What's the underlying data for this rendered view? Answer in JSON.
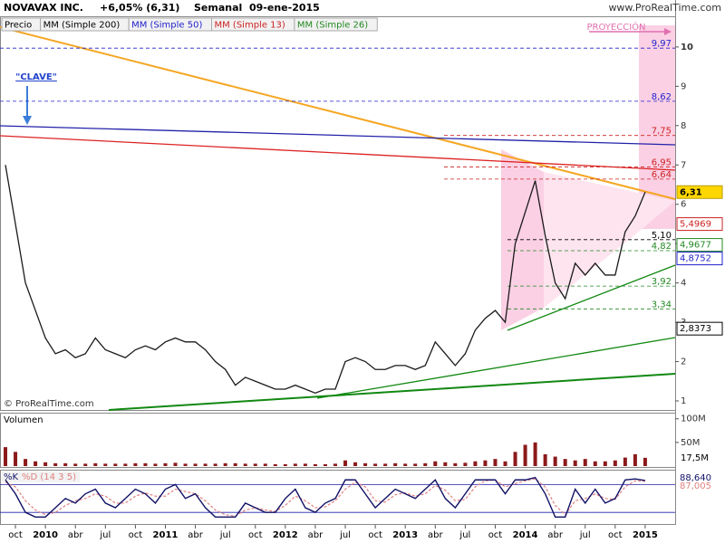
{
  "header": {
    "title": "NOVAVAX INC.",
    "change": "+6,05% (6,31)",
    "period": "Semanal",
    "date": "09-ene-2015",
    "site": "www.ProRealTime.com"
  },
  "indicators": [
    {
      "name": "Precio",
      "color": "#000000"
    },
    {
      "name": "MM (Simple 200)",
      "color": "#000000"
    },
    {
      "name": "MM (Simple 50)",
      "color": "#2222cc"
    },
    {
      "name": "MM (Simple 13)",
      "color": "#cc2222"
    },
    {
      "name": "MM (Simple 26)",
      "color": "#228822"
    }
  ],
  "chart_data": [
    {
      "type": "line",
      "title": "Precio",
      "categories": [
        null,
        "oct",
        null,
        null,
        "2010",
        null,
        null,
        "abr",
        null,
        null,
        "jul",
        null,
        null,
        "oct",
        null,
        null,
        "2011",
        null,
        null,
        "abr",
        null,
        null,
        "jul",
        null,
        null,
        "oct",
        null,
        null,
        "2012",
        null,
        null,
        "abr",
        null,
        null,
        "jul",
        null,
        null,
        "oct",
        null,
        null,
        "2013",
        null,
        null,
        "abr",
        null,
        null,
        "jul",
        null,
        null,
        "oct",
        null,
        null,
        "2014",
        null,
        null,
        "abr",
        null,
        null,
        "jul",
        null,
        null,
        "oct",
        null,
        null,
        "2015"
      ],
      "series": [
        {
          "name": "Precio",
          "color": "#1a1a1a",
          "values": [
            7,
            5.5,
            4.0,
            3.3,
            2.6,
            2.2,
            2.3,
            2.1,
            2.2,
            2.6,
            2.3,
            2.2,
            2.1,
            2.3,
            2.4,
            2.3,
            2.5,
            2.6,
            2.5,
            2.5,
            2.3,
            2.0,
            1.8,
            1.4,
            1.6,
            1.5,
            1.4,
            1.3,
            1.3,
            1.4,
            1.3,
            1.2,
            1.3,
            1.3,
            2.0,
            2.1,
            2.0,
            1.8,
            1.8,
            1.9,
            1.9,
            1.8,
            1.9,
            2.5,
            2.2,
            1.9,
            2.2,
            2.8,
            3.1,
            3.3,
            3.0,
            5.0,
            5.8,
            6.6,
            5.2,
            4.0,
            3.6,
            4.5,
            4.2,
            4.5,
            4.2,
            4.2,
            5.3,
            5.7,
            6.31
          ]
        }
      ],
      "ylim": [
        0.77,
        10.78
      ],
      "yticks": [
        1,
        2,
        3,
        4,
        5,
        6,
        7,
        8,
        9,
        10
      ],
      "levels": [
        {
          "value": 9.97,
          "label": "9,97",
          "color": "#2222cc"
        },
        {
          "value": 8.62,
          "label": "8,62",
          "color": "#2222cc"
        },
        {
          "value": 7.75,
          "label": "7,75",
          "color": "#cc2222"
        },
        {
          "value": 6.95,
          "label": "6,95",
          "color": "#cc2222"
        },
        {
          "value": 6.64,
          "label": "6,64",
          "color": "#cc2222"
        },
        {
          "value": 5.1,
          "label": "5,10",
          "color": "#000000"
        },
        {
          "value": 4.82,
          "label": "4,82",
          "color": "#228822"
        },
        {
          "value": 3.92,
          "label": "3,92",
          "color": "#228822"
        },
        {
          "value": 3.34,
          "label": "3,34",
          "color": "#228822"
        }
      ],
      "price_labels": [
        {
          "value": 6.31,
          "label": "6,31",
          "color": "#ffd700"
        },
        {
          "value": 5.4969,
          "label": "5,4969",
          "color": "#cc2222"
        },
        {
          "value": 4.9677,
          "label": "4,9677",
          "color": "#228822"
        },
        {
          "value": 4.8752,
          "label": "4,8752",
          "color": "#2222cc"
        },
        {
          "value": 2.8373,
          "label": "2,8373",
          "color": "#000000"
        }
      ],
      "annotations": {
        "projection": "PROYECCIÓN",
        "key": "\"CLAVE\"",
        "copyright": "© ProRealTime.com"
      }
    },
    {
      "type": "bar",
      "title": "Volumen",
      "color": "#8b1a1a",
      "values": [
        40,
        30,
        15,
        10,
        8,
        6,
        6,
        5,
        5,
        6,
        5,
        5,
        5,
        6,
        6,
        5,
        6,
        7,
        5,
        5,
        5,
        5,
        6,
        6,
        5,
        5,
        5,
        4,
        4,
        5,
        5,
        4,
        4,
        5,
        12,
        8,
        6,
        5,
        5,
        6,
        5,
        5,
        6,
        10,
        8,
        6,
        7,
        10,
        12,
        15,
        10,
        30,
        45,
        50,
        25,
        20,
        15,
        12,
        15,
        10,
        10,
        12,
        18,
        25,
        17.5
      ],
      "value_labels_last": "17,5M",
      "ylim": [
        0,
        111
      ],
      "yticks": [
        {
          "value": 50,
          "label": "50M"
        },
        {
          "value": 100,
          "label": "100M"
        }
      ]
    },
    {
      "type": "line",
      "title": "%K",
      "series": [
        {
          "name": "%D (14 3 5)",
          "color": "#e08080",
          "values": [
            85,
            75,
            45,
            25,
            15,
            20,
            35,
            45,
            50,
            60,
            55,
            40,
            40,
            55,
            62,
            55,
            55,
            70,
            65,
            60,
            45,
            25,
            15,
            12,
            25,
            30,
            25,
            22,
            35,
            55,
            45,
            30,
            32,
            45,
            70,
            85,
            75,
            45,
            42,
            58,
            62,
            55,
            60,
            78,
            68,
            45,
            48,
            75,
            88,
            90,
            75,
            82,
            88,
            92,
            75,
            35,
            15,
            45,
            50,
            60,
            50,
            48,
            75,
            88,
            87.005
          ],
          "last_label": "87,005"
        },
        {
          "name": "%K",
          "color": "#111166",
          "values": [
            90,
            60,
            20,
            10,
            10,
            30,
            50,
            40,
            60,
            70,
            40,
            30,
            50,
            70,
            60,
            40,
            70,
            80,
            50,
            60,
            30,
            10,
            10,
            10,
            40,
            30,
            20,
            20,
            50,
            70,
            30,
            20,
            40,
            50,
            90,
            90,
            60,
            30,
            50,
            70,
            60,
            50,
            70,
            90,
            50,
            30,
            60,
            90,
            90,
            90,
            60,
            90,
            90,
            95,
            60,
            10,
            10,
            70,
            40,
            70,
            40,
            50,
            90,
            92,
            88.64
          ],
          "last_label": "88,640"
        }
      ],
      "ylim": [
        -5,
        110
      ],
      "levels": [
        20,
        80
      ]
    }
  ]
}
